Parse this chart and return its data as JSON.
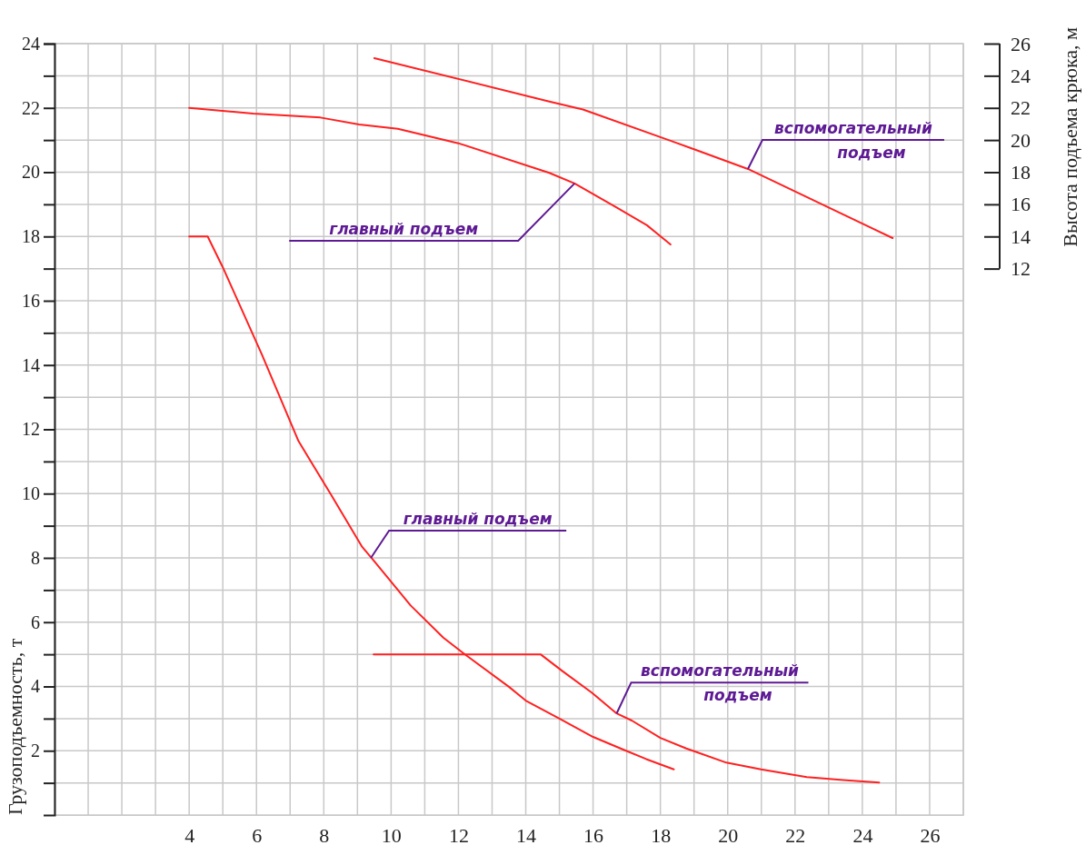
{
  "chart_data": {
    "type": "line",
    "xlim": [
      0,
      27
    ],
    "xticks": [
      {
        "value": 1,
        "label": null
      },
      {
        "value": 2,
        "label": null
      },
      {
        "value": 3,
        "label": null
      },
      4,
      {
        "value": 5,
        "label": null
      },
      6,
      {
        "value": 7,
        "label": null
      },
      8,
      {
        "value": 9,
        "label": null
      },
      10,
      {
        "value": 11,
        "label": null
      },
      12,
      {
        "value": 13,
        "label": null
      },
      14,
      {
        "value": 15,
        "label": null
      },
      16,
      {
        "value": 17,
        "label": null
      },
      18,
      {
        "value": 19,
        "label": null
      },
      20,
      {
        "value": 21,
        "label": null
      },
      22,
      {
        "value": 23,
        "label": null
      },
      24,
      {
        "value": 25,
        "label": null
      },
      26,
      {
        "value": 27,
        "label": null
      }
    ],
    "ylim": [
      0,
      24
    ],
    "yticks": [
      {
        "value": 1,
        "label": null
      },
      2,
      {
        "value": 3,
        "label": null
      },
      4,
      {
        "value": 5,
        "label": null
      },
      6,
      {
        "value": 7,
        "label": null
      },
      8,
      {
        "value": 9,
        "label": null
      },
      10,
      {
        "value": 11,
        "label": null
      },
      12,
      {
        "value": 13,
        "label": null
      },
      14,
      {
        "value": 15,
        "label": null
      },
      16,
      {
        "value": 17,
        "label": null
      },
      18,
      {
        "value": 19,
        "label": null
      },
      20,
      {
        "value": 21,
        "label": null
      },
      22,
      {
        "value": 23,
        "label": null
      },
      24
    ],
    "y2lim": [
      -22,
      26
    ],
    "y2ticks": [
      12,
      14,
      16,
      18,
      20,
      22,
      24,
      26
    ],
    "ylabel": "Грузоподъемность, т",
    "y2label": "Высота подъема крюка, м",
    "grid": true,
    "marker": "none",
    "line_style": "solid",
    "series": [
      {
        "color": "#ff2020",
        "x": [
          4,
          4.55,
          5.0,
          6.16,
          7.25,
          8.2,
          9.14,
          9.47,
          10.58,
          11.55,
          12.24,
          13.5,
          14.0,
          15.0,
          16.0,
          16.93,
          17.58,
          18.4
        ],
        "values": [
          18,
          18,
          17.04,
          14.33,
          11.63,
          9.99,
          8.34,
          7.93,
          6.52,
          5.52,
          4.96,
          3.99,
          3.56,
          3.0,
          2.43,
          2.02,
          1.74,
          1.42
        ]
      },
      {
        "color": "#ff2020",
        "x": [
          9.48,
          14.44,
          15.1,
          15.96,
          16.7,
          17.15,
          18.0,
          18.77,
          19.96,
          20.99,
          22.35,
          23.43,
          24.5
        ],
        "values": [
          5,
          5,
          4.47,
          3.81,
          3.16,
          2.94,
          2.4,
          2.07,
          1.63,
          1.42,
          1.18,
          1.09,
          1.01
        ]
      },
      {
        "color": "#ff2020",
        "axis": "y2",
        "x": [
          4,
          5.9,
          7.9,
          9.05,
          10.2,
          12.0,
          14.7,
          15.45,
          16.7,
          17.6,
          18.3
        ],
        "values": [
          22,
          21.65,
          21.4,
          20.97,
          20.7,
          19.8,
          17.96,
          17.3,
          15.8,
          14.7,
          13.5
        ]
      },
      {
        "color": "#ff2020",
        "axis": "y2",
        "x": [
          9.5,
          14.7,
          15.7,
          18.3,
          20.6,
          23.0,
          24.9
        ],
        "values": [
          25.1,
          22.4,
          21.9,
          19.96,
          18.2,
          15.8,
          13.9
        ]
      }
    ],
    "annotations": [
      {
        "text": "главный подъем",
        "x": 9.4,
        "y": 8
      },
      {
        "text": "вспомогательный подъем",
        "x": 16.7,
        "y": 3.16
      },
      {
        "text": "главный подъем",
        "x": 15.45,
        "y": 19.65
      },
      {
        "text": "вспомогательный подъем",
        "x": 20.6,
        "y": 20.1
      }
    ]
  }
}
